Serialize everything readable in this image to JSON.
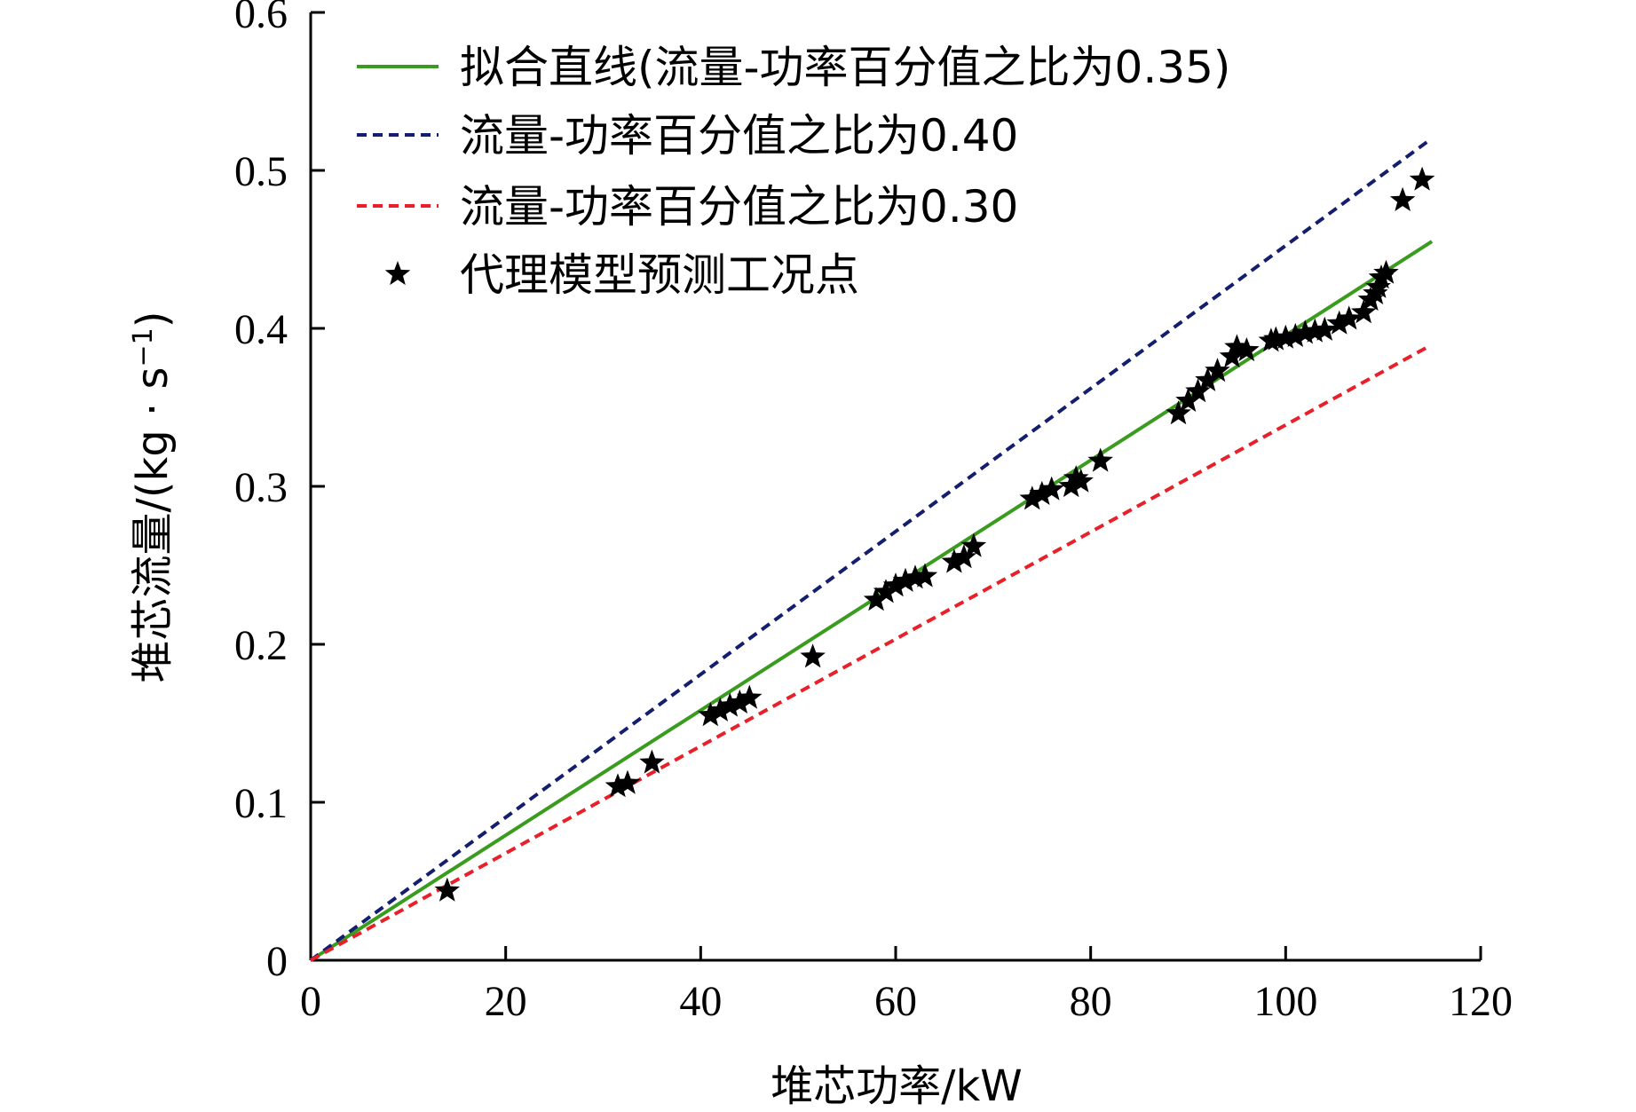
{
  "chart_data": {
    "type": "scatter",
    "xlabel": "堆芯功率/kW",
    "ylabel": "堆芯流量/(kg · s",
    "ylabel_sup": "−1",
    "ylabel_tail": ")",
    "xlim": [
      0,
      120
    ],
    "ylim": [
      0,
      0.6
    ],
    "x_ticks": [
      "0",
      "20",
      "40",
      "60",
      "80",
      "100",
      "120"
    ],
    "y_ticks": [
      "0",
      "0.1",
      "0.2",
      "0.3",
      "0.4",
      "0.5",
      "0.6"
    ],
    "grid": false,
    "legend_position": "top-left",
    "lines": [
      {
        "name": "拟合直线(流量-功率百分值之比为0.35)",
        "color": "#3a9c1e",
        "style": "solid",
        "x": [
          0,
          115
        ],
        "y": [
          0,
          0.455
        ]
      },
      {
        "name": "流量-功率百分值之比为0.40",
        "color": "#141e6e",
        "style": "dashed",
        "x": [
          0,
          114.5
        ],
        "y": [
          0,
          0.518
        ]
      },
      {
        "name": "流量-功率百分值之比为0.30",
        "color": "#e8202a",
        "style": "dashed",
        "x": [
          0,
          114.5
        ],
        "y": [
          0,
          0.388
        ]
      }
    ],
    "scatter": {
      "name": "代理模型预测工况点",
      "color": "#000000",
      "points": [
        [
          14,
          0.044
        ],
        [
          31.5,
          0.11
        ],
        [
          32.5,
          0.112
        ],
        [
          35,
          0.125
        ],
        [
          41,
          0.155
        ],
        [
          42,
          0.158
        ],
        [
          43,
          0.161
        ],
        [
          44,
          0.163
        ],
        [
          45,
          0.166
        ],
        [
          51.5,
          0.192
        ],
        [
          58,
          0.228
        ],
        [
          59,
          0.233
        ],
        [
          60,
          0.237
        ],
        [
          61,
          0.24
        ],
        [
          62,
          0.242
        ],
        [
          63,
          0.243
        ],
        [
          66,
          0.252
        ],
        [
          67,
          0.255
        ],
        [
          68,
          0.262
        ],
        [
          74,
          0.292
        ],
        [
          75,
          0.295
        ],
        [
          76,
          0.298
        ],
        [
          78,
          0.3
        ],
        [
          78.5,
          0.305
        ],
        [
          79,
          0.303
        ],
        [
          81,
          0.316
        ],
        [
          89,
          0.346
        ],
        [
          90,
          0.354
        ],
        [
          91,
          0.36
        ],
        [
          92,
          0.367
        ],
        [
          93,
          0.373
        ],
        [
          94.5,
          0.382
        ],
        [
          95,
          0.388
        ],
        [
          96,
          0.386
        ],
        [
          98.5,
          0.392
        ],
        [
          99,
          0.393
        ],
        [
          100,
          0.394
        ],
        [
          101,
          0.395
        ],
        [
          102,
          0.397
        ],
        [
          103,
          0.398
        ],
        [
          104,
          0.399
        ],
        [
          105.5,
          0.403
        ],
        [
          106.5,
          0.406
        ],
        [
          108,
          0.41
        ],
        [
          108.7,
          0.418
        ],
        [
          109.2,
          0.422
        ],
        [
          109.5,
          0.426
        ],
        [
          109.8,
          0.432
        ],
        [
          110.3,
          0.435
        ],
        [
          112,
          0.481
        ],
        [
          114,
          0.494
        ]
      ]
    }
  }
}
